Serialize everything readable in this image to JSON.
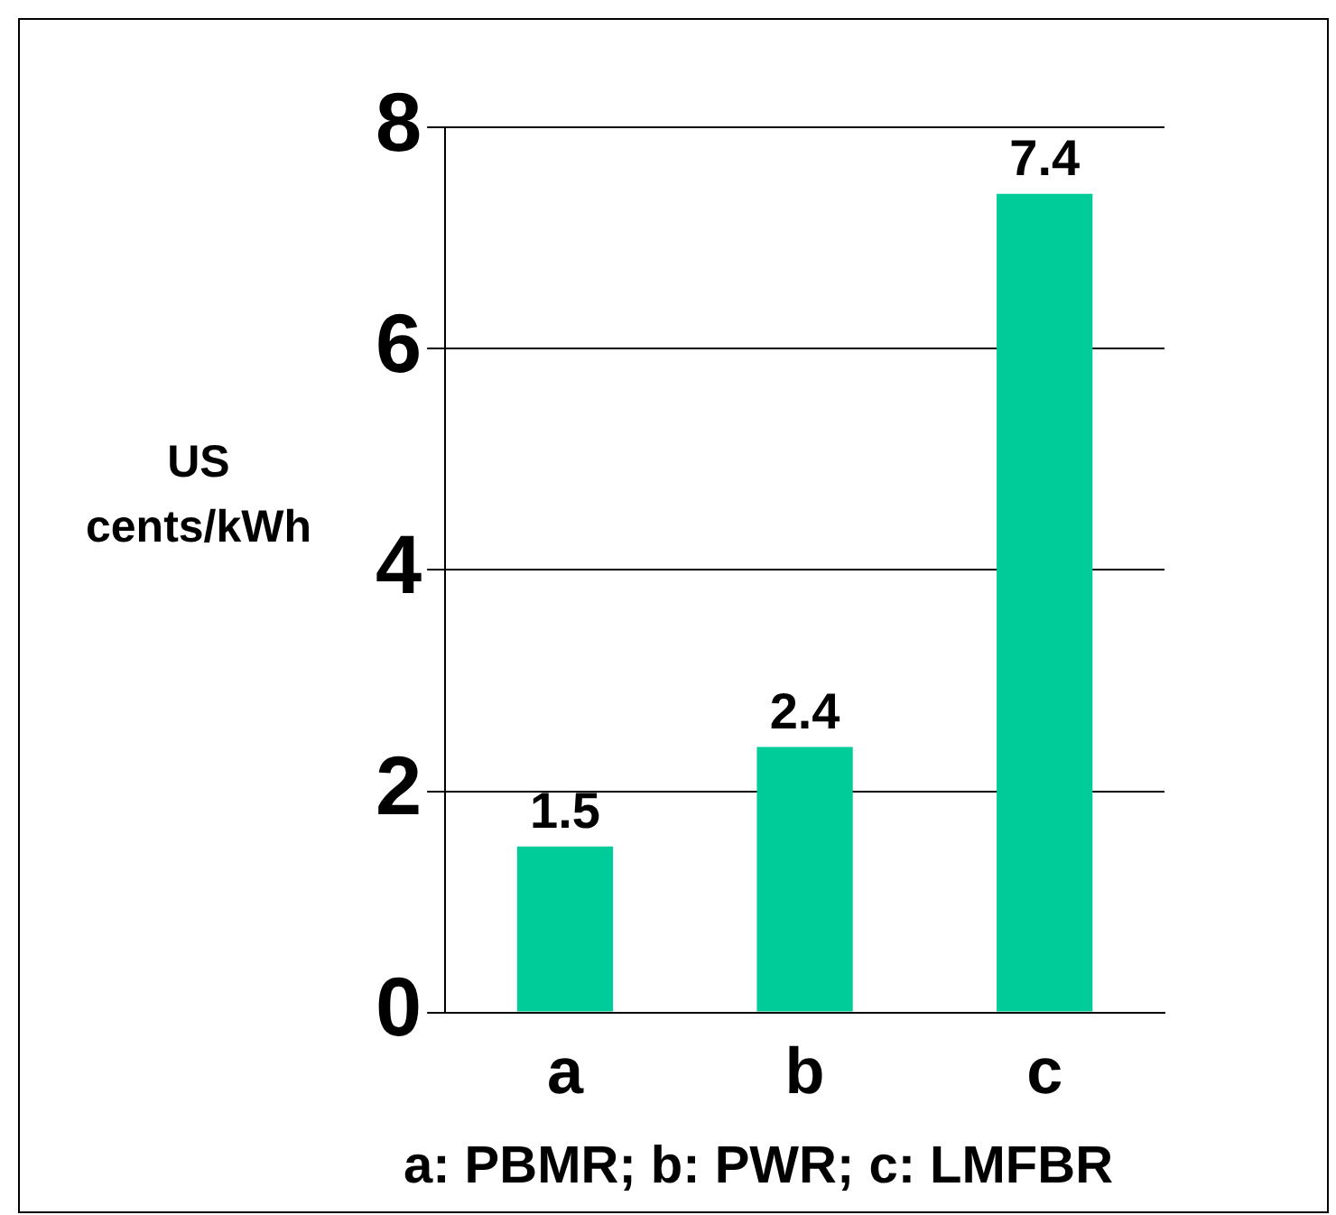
{
  "chart_data": {
    "type": "bar",
    "ylabel": "US cents/kWh",
    "categories": [
      "a",
      "b",
      "c"
    ],
    "values": [
      1.5,
      2.4,
      7.4
    ],
    "color": "#00cc99",
    "ylim": [
      0,
      8
    ],
    "yticks": [
      0,
      2,
      4,
      6,
      8
    ],
    "grid": "y",
    "legend": false,
    "data_labels": true,
    "annotations": [
      "a: PBMR; b: PWR; c: LMFBR"
    ]
  }
}
